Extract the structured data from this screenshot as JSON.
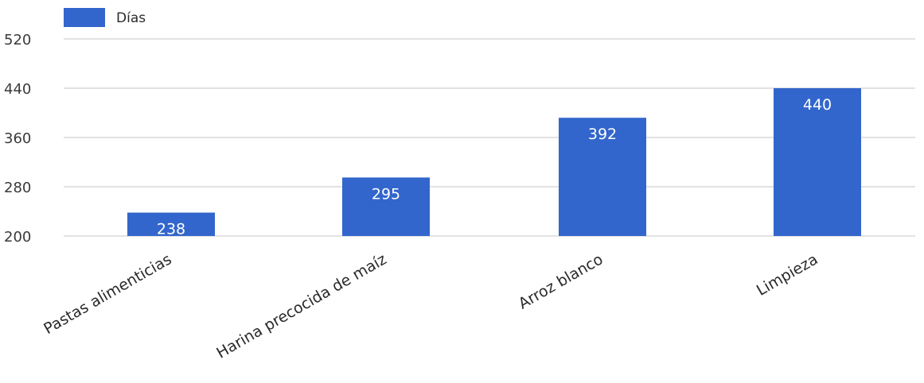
{
  "chart_data": {
    "type": "bar",
    "categories": [
      "Pastas alimenticias",
      "Harina precocida de maíz",
      "Arroz blanco",
      "Limpieza"
    ],
    "series": [
      {
        "name": "Días",
        "values": [
          238,
          295,
          392,
          440
        ],
        "color": "#3366cc"
      }
    ],
    "data_labels": [
      "238",
      "295",
      "392",
      "440"
    ],
    "yticks": [
      "200",
      "280",
      "360",
      "440",
      "520"
    ],
    "ylim": [
      200,
      520
    ],
    "grid": true,
    "legend_position": "top-left",
    "title": "",
    "xlabel": "",
    "ylabel": ""
  }
}
